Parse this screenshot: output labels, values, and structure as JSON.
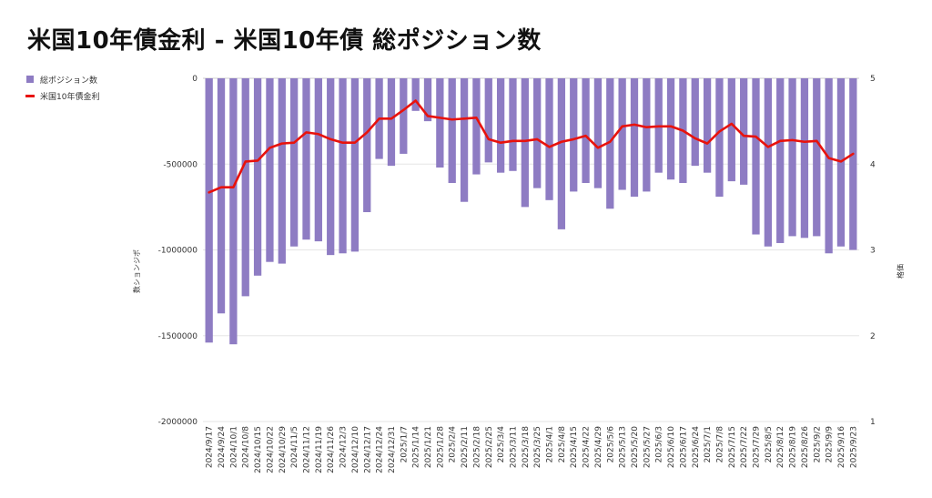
{
  "chart_data": {
    "type": "bar",
    "title": "米国10年債金利 - 米国10年債 総ポジション数",
    "ylabel": "数ションジポ",
    "y2label": "格価",
    "ylim": [
      -2000000,
      0
    ],
    "y2lim": [
      1,
      5
    ],
    "yticks": [
      "0",
      "-500000",
      "-1000000",
      "-1500000",
      "-2000000"
    ],
    "y2ticks": [
      "5",
      "4",
      "3",
      "2",
      "1"
    ],
    "legend": {
      "bar_label": "総ポジション数",
      "line_label": "米国10年債金利"
    },
    "colors": {
      "bar": "#8e7cc3",
      "line": "#e8120c",
      "grid": "#e6e6e6"
    },
    "categories": [
      "2024/9/17",
      "2024/9/24",
      "2024/10/1",
      "2024/10/8",
      "2024/10/15",
      "2024/10/22",
      "2024/10/29",
      "2024/11/5",
      "2024/11/12",
      "2024/11/19",
      "2024/11/26",
      "2024/12/3",
      "2024/12/10",
      "2024/12/17",
      "2024/12/24",
      "2024/12/31",
      "2025/1/7",
      "2025/1/14",
      "2025/1/21",
      "2025/1/28",
      "2025/2/4",
      "2025/2/11",
      "2025/2/18",
      "2025/2/25",
      "2025/3/4",
      "2025/3/11",
      "2025/3/18",
      "2025/3/25",
      "2025/4/1",
      "2025/4/8",
      "2025/4/15",
      "2025/4/22",
      "2025/4/29",
      "2025/5/6",
      "2025/5/13",
      "2025/5/20",
      "2025/5/27",
      "2025/6/3",
      "2025/6/10",
      "2025/6/17",
      "2025/6/24",
      "2025/7/1",
      "2025/7/8",
      "2025/7/15",
      "2025/7/22",
      "2025/7/29",
      "2025/8/5",
      "2025/8/12",
      "2025/8/19",
      "2025/8/26",
      "2025/9/2",
      "2025/9/9",
      "2025/9/16",
      "2025/9/23"
    ],
    "tick_labels": [
      "2024/9/17",
      "2024/9/24",
      "2024/10/1",
      "2024/10/8",
      "2024/10/15",
      "2024/10/22",
      "2024/10/29",
      "2024/11/5",
      "2024/11/12",
      "2024/11/19",
      "2024/11/26",
      "2024/12/3",
      "2024/12/10",
      "2024/12/17",
      "2024/12/24",
      "2024/12/31",
      "2025/1/7",
      "2025/1/14",
      "2025/1/21",
      "2025/1/28",
      "2025/2/4",
      "2025/2/11",
      "2025/2/18",
      "2025/2/25",
      "2025/3/4",
      "2025/3/11",
      "2025/3/18",
      "2025/3/25",
      "2025/4/1",
      "2025/4/8",
      "2025/4/15",
      "2025/4/22",
      "2025/4/29",
      "2025/5/6",
      "2025/5/13",
      "2025/5/20",
      "2025/5/27",
      "2025/6/3",
      "2025/6/10",
      "2025/6/17",
      "2025/6/24",
      "2025/7/1",
      "2025/7/8",
      "2025/7/15",
      "2025/7/22",
      "2025/7/29",
      "2025/8/5",
      "2025/8/12",
      "2025/8/19",
      "2025/8/26",
      "2025/9/2",
      "2025/9/9",
      "2025/9/16",
      "2025/9/23"
    ],
    "series": [
      {
        "name": "総ポジション数",
        "axis": "left",
        "kind": "bar",
        "values": [
          -1540000,
          -1370000,
          -1550000,
          -1270000,
          -1150000,
          -1070000,
          -1080000,
          -980000,
          -940000,
          -950000,
          -1030000,
          -1020000,
          -1010000,
          -780000,
          -470000,
          -510000,
          -440000,
          -190000,
          -250000,
          -520000,
          -610000,
          -720000,
          -560000,
          -490000,
          -550000,
          -540000,
          -750000,
          -640000,
          -710000,
          -880000,
          -660000,
          -610000,
          -640000,
          -760000,
          -650000,
          -690000,
          -660000,
          -550000,
          -590000,
          -610000,
          -510000,
          -550000,
          -690000,
          -600000,
          -620000,
          -910000,
          -980000,
          -960000,
          -920000,
          -930000,
          -920000,
          -1020000,
          -980000,
          -1000000
        ]
      },
      {
        "name": "米国10年債金利",
        "axis": "right",
        "kind": "line",
        "values": [
          3.67,
          3.73,
          3.73,
          4.03,
          4.04,
          4.19,
          4.24,
          4.25,
          4.37,
          4.35,
          4.29,
          4.25,
          4.25,
          4.37,
          4.53,
          4.53,
          4.63,
          4.74,
          4.56,
          4.54,
          4.52,
          4.53,
          4.54,
          4.29,
          4.25,
          4.27,
          4.27,
          4.29,
          4.2,
          4.26,
          4.29,
          4.33,
          4.19,
          4.26,
          4.44,
          4.46,
          4.43,
          4.44,
          4.44,
          4.39,
          4.3,
          4.24,
          4.38,
          4.47,
          4.33,
          4.32,
          4.2,
          4.27,
          4.28,
          4.26,
          4.27,
          4.07,
          4.03,
          4.12
        ]
      }
    ]
  }
}
